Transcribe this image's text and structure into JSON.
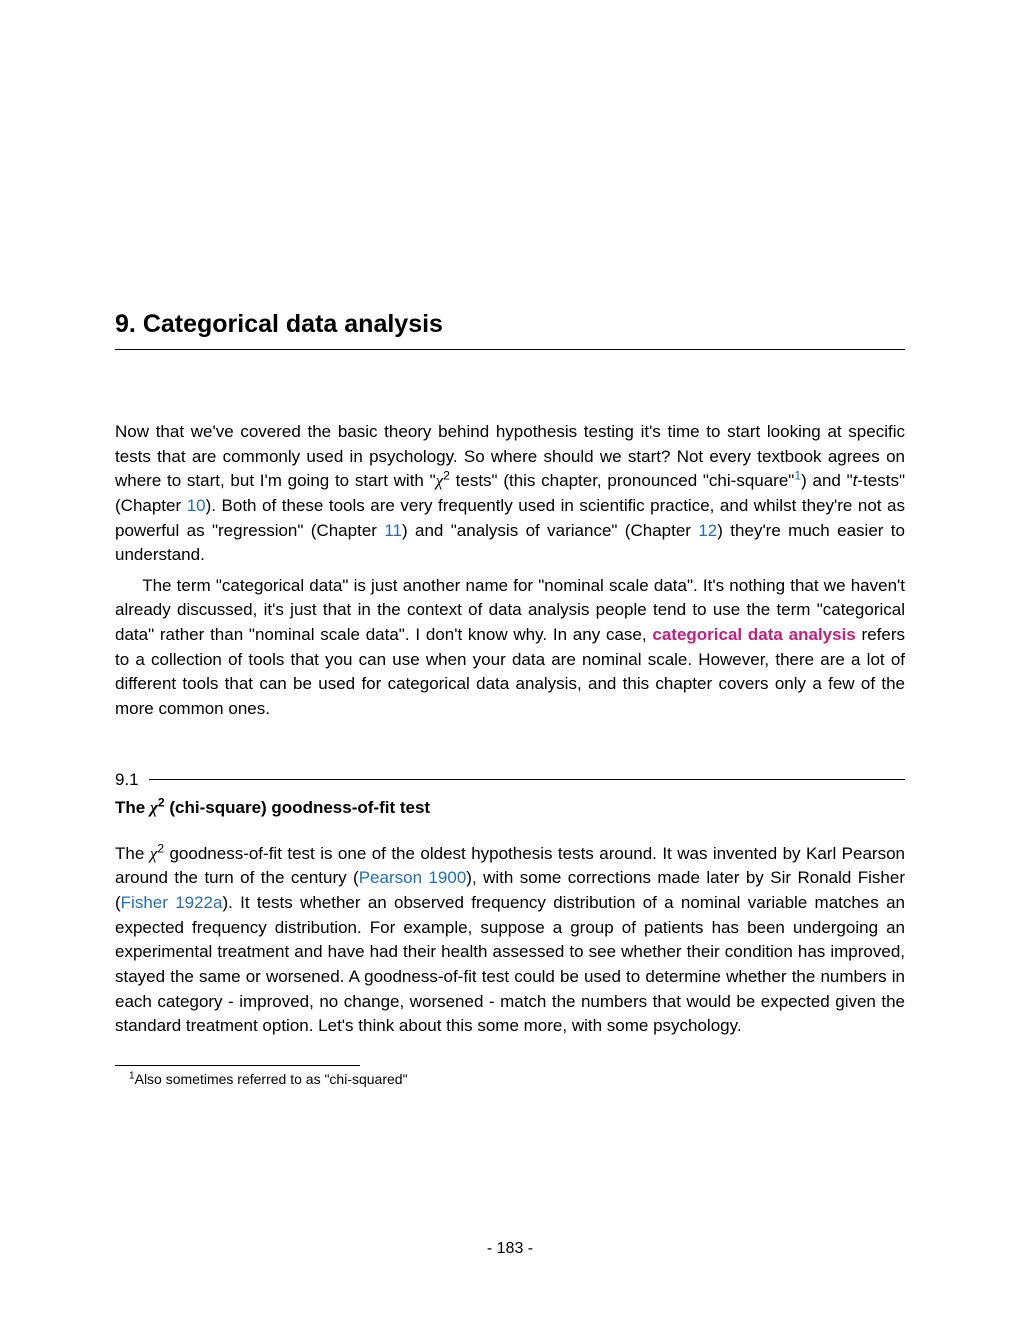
{
  "chapter": {
    "number": "9.",
    "title": "Categorical data analysis"
  },
  "para1_parts": {
    "a": "Now that we've covered the basic theory behind hypothesis testing it's time to start looking at specific tests that are commonly used in psychology. So where should we start? Not every textbook agrees on where to start, but I'm going to start with \"",
    "chi": "χ",
    "sup2": "2",
    "b": " tests\" (this chapter, pronounced \"chi-square\"",
    "fnref": "1",
    "c": ") and \"",
    "t": "t",
    "d": "-tests\" (Chapter ",
    "link10": "10",
    "e": "). Both of these tools are very frequently used in scientific practice, and whilst they're not as powerful as \"regression\" (Chapter ",
    "link11": "11",
    "f": ") and \"analysis of variance\" (Chapter ",
    "link12": "12",
    "g": ") they're much easier to understand."
  },
  "para2_parts": {
    "a": "The term \"categorical data\" is just another name for \"nominal scale data\". It's nothing that we haven't already discussed, it's just that in the context of data analysis people tend to use the term \"categorical data\" rather than \"nominal scale data\". I don't know why. In any case, ",
    "keyword": "categorical data analysis",
    "b": " refers to a collection of tools that you can use when your data are nominal scale. However, there are a lot of different tools that can be used for categorical data analysis, and this chapter covers only a few of the more common ones."
  },
  "section": {
    "num": "9.1",
    "title_a": "The ",
    "title_chi": "χ",
    "title_sup": "2",
    "title_b": " (chi-square) goodness-of-fit test"
  },
  "para3_parts": {
    "a": "The ",
    "chi": "χ",
    "sup2": "2",
    "b": " goodness-of-fit test is one of the oldest hypothesis tests around. It was invented by Karl Pearson around the turn of the century (",
    "cite1": "Pearson 1900",
    "c": "), with some corrections made later by Sir Ronald Fisher (",
    "cite2": "Fisher 1922a",
    "d": "). It tests whether an observed frequency distribution of a nominal variable matches an expected frequency distribution. For example, suppose a group of patients has been undergoing an experimental treatment and have had their health assessed to see whether their condition has improved, stayed the same or worsened. A goodness-of-fit test could be used to determine whether the numbers in each category - improved, no change, worsened - match the numbers that would be expected given the standard treatment option. Let's think about this some more, with some psychology."
  },
  "footnote": {
    "marker": "1",
    "text": "Also sometimes referred to as \"chi-squared\""
  },
  "page_number": "- 183 -"
}
